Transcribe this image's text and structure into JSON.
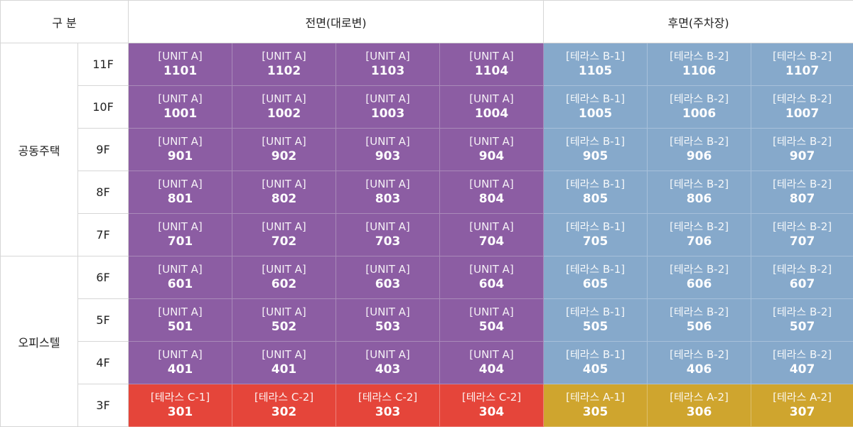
{
  "headers": {
    "category": "구 분",
    "front": "전면(대로변)",
    "rear": "후면(주차장)"
  },
  "groups": {
    "housing": "공동주택",
    "office": "오피스텔"
  },
  "colors": {
    "purple": "#8c5da3",
    "blue": "#86a9cb",
    "red": "#e5453a",
    "gold": "#cfa52e"
  },
  "rows": [
    {
      "floor": "11F",
      "units": [
        {
          "type": "[UNIT A]",
          "num": "1101"
        },
        {
          "type": "[UNIT A]",
          "num": "1102"
        },
        {
          "type": "[UNIT A]",
          "num": "1103"
        },
        {
          "type": "[UNIT A]",
          "num": "1104"
        },
        {
          "type": "[테라스 B-1]",
          "num": "1105"
        },
        {
          "type": "[테라스 B-2]",
          "num": "1106"
        },
        {
          "type": "[테라스 B-2]",
          "num": "1107"
        }
      ]
    },
    {
      "floor": "10F",
      "units": [
        {
          "type": "[UNIT A]",
          "num": "1001"
        },
        {
          "type": "[UNIT A]",
          "num": "1002"
        },
        {
          "type": "[UNIT A]",
          "num": "1003"
        },
        {
          "type": "[UNIT A]",
          "num": "1004"
        },
        {
          "type": "[테라스 B-1]",
          "num": "1005"
        },
        {
          "type": "[테라스 B-2]",
          "num": "1006"
        },
        {
          "type": "[테라스 B-2]",
          "num": "1007"
        }
      ]
    },
    {
      "floor": "9F",
      "units": [
        {
          "type": "[UNIT A]",
          "num": "901"
        },
        {
          "type": "[UNIT A]",
          "num": "902"
        },
        {
          "type": "[UNIT A]",
          "num": "903"
        },
        {
          "type": "[UNIT A]",
          "num": "904"
        },
        {
          "type": "[테라스 B-1]",
          "num": "905"
        },
        {
          "type": "[테라스 B-2]",
          "num": "906"
        },
        {
          "type": "[테라스 B-2]",
          "num": "907"
        }
      ]
    },
    {
      "floor": "8F",
      "units": [
        {
          "type": "[UNIT A]",
          "num": "801"
        },
        {
          "type": "[UNIT A]",
          "num": "802"
        },
        {
          "type": "[UNIT A]",
          "num": "803"
        },
        {
          "type": "[UNIT A]",
          "num": "804"
        },
        {
          "type": "[테라스 B-1]",
          "num": "805"
        },
        {
          "type": "[테라스 B-2]",
          "num": "806"
        },
        {
          "type": "[테라스 B-2]",
          "num": "807"
        }
      ]
    },
    {
      "floor": "7F",
      "units": [
        {
          "type": "[UNIT A]",
          "num": "701"
        },
        {
          "type": "[UNIT A]",
          "num": "702"
        },
        {
          "type": "[UNIT A]",
          "num": "703"
        },
        {
          "type": "[UNIT A]",
          "num": "704"
        },
        {
          "type": "[테라스 B-1]",
          "num": "705"
        },
        {
          "type": "[테라스 B-2]",
          "num": "706"
        },
        {
          "type": "[테라스 B-2]",
          "num": "707"
        }
      ]
    },
    {
      "floor": "6F",
      "units": [
        {
          "type": "[UNIT A]",
          "num": "601"
        },
        {
          "type": "[UNIT A]",
          "num": "602"
        },
        {
          "type": "[UNIT A]",
          "num": "603"
        },
        {
          "type": "[UNIT A]",
          "num": "604"
        },
        {
          "type": "[테라스 B-1]",
          "num": "605"
        },
        {
          "type": "[테라스 B-2]",
          "num": "606"
        },
        {
          "type": "[테라스 B-2]",
          "num": "607"
        }
      ]
    },
    {
      "floor": "5F",
      "units": [
        {
          "type": "[UNIT A]",
          "num": "501"
        },
        {
          "type": "[UNIT A]",
          "num": "502"
        },
        {
          "type": "[UNIT A]",
          "num": "503"
        },
        {
          "type": "[UNIT A]",
          "num": "504"
        },
        {
          "type": "[테라스 B-1]",
          "num": "505"
        },
        {
          "type": "[테라스 B-2]",
          "num": "506"
        },
        {
          "type": "[테라스 B-2]",
          "num": "507"
        }
      ]
    },
    {
      "floor": "4F",
      "units": [
        {
          "type": "[UNIT A]",
          "num": "401"
        },
        {
          "type": "[UNIT A]",
          "num": "401"
        },
        {
          "type": "[UNIT A]",
          "num": "403"
        },
        {
          "type": "[UNIT A]",
          "num": "404"
        },
        {
          "type": "[테라스 B-1]",
          "num": "405"
        },
        {
          "type": "[테라스 B-2]",
          "num": "406"
        },
        {
          "type": "[테라스 B-2]",
          "num": "407"
        }
      ]
    },
    {
      "floor": "3F",
      "units": [
        {
          "type": "[테라스 C-1]",
          "num": "301"
        },
        {
          "type": "[테라스 C-2]",
          "num": "302"
        },
        {
          "type": "[테라스 C-2]",
          "num": "303"
        },
        {
          "type": "[테라스 C-2]",
          "num": "304"
        },
        {
          "type": "[테라스 A-1]",
          "num": "305"
        },
        {
          "type": "[테라스 A-2]",
          "num": "306"
        },
        {
          "type": "[테라스 A-2]",
          "num": "307"
        }
      ]
    }
  ]
}
